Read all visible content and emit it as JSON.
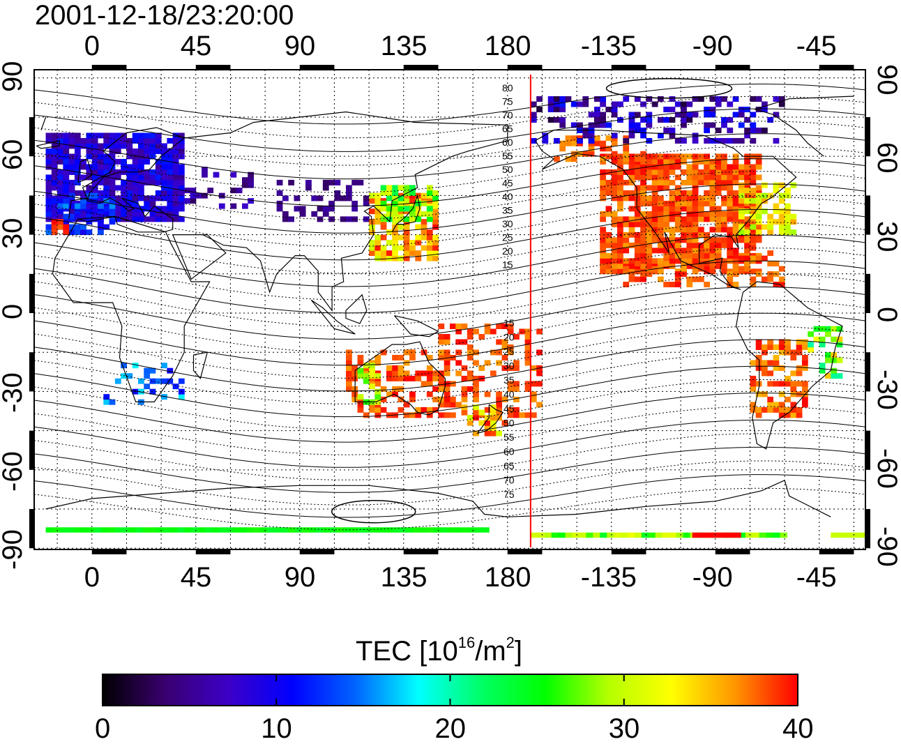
{
  "title": "2001-12-18/23:20:00",
  "map": {
    "lon_ticks_top": [
      "0",
      "45",
      "90",
      "135",
      "180",
      "-135",
      "-90",
      "-45"
    ],
    "lon_ticks_bottom": [
      "0",
      "45",
      "90",
      "135",
      "180",
      "-135",
      "-90",
      "-45"
    ],
    "lat_ticks_left": [
      "90",
      "60",
      "30",
      "0",
      "-30",
      "-60",
      "-90"
    ],
    "lat_ticks_right": [
      "90",
      "60",
      "30",
      "0",
      "-30",
      "-60",
      "-90"
    ],
    "magnetic_lat_labels_north": [
      "80",
      "75",
      "70",
      "65",
      "60",
      "55",
      "50",
      "45",
      "40",
      "35",
      "30",
      "25",
      "20",
      "15"
    ],
    "magnetic_lat_labels_south": [
      "15",
      "20",
      "25",
      "30",
      "35",
      "40",
      "45",
      "50",
      "55",
      "60",
      "65",
      "70",
      "75"
    ],
    "terminator_lon": 190,
    "colors": {
      "terminator": "#ff0000",
      "coast": "#000000",
      "grid": "#000000"
    }
  },
  "colorbar": {
    "label_main": "TEC  [10",
    "label_exp1": "16",
    "label_mid": "/m",
    "label_exp2": "2",
    "label_end": "]",
    "min": 0,
    "max": 40,
    "ticks": [
      "0",
      "10",
      "20",
      "30",
      "40"
    ],
    "colormap": [
      "#000000",
      "#3a0070",
      "#3c00c8",
      "#0000ff",
      "#0064ff",
      "#00ffff",
      "#00ff64",
      "#00ff00",
      "#b4ff00",
      "#ffff00",
      "#ff9600",
      "#ff0000"
    ]
  }
}
